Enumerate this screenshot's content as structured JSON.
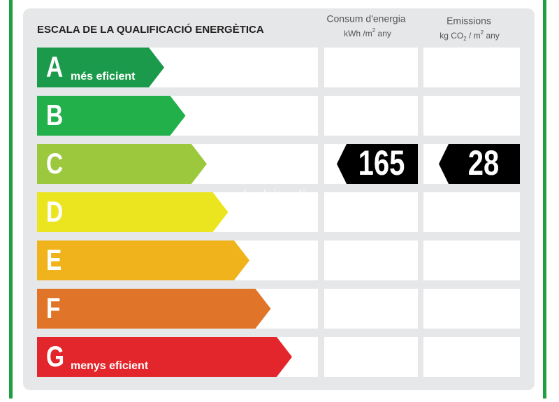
{
  "title": "ESCALA DE LA QUALIFICACIÓ ENERGÈTICA",
  "columns": [
    {
      "title": "Consum d'energia",
      "unit": [
        "kWh /m",
        "2",
        " any"
      ]
    },
    {
      "title": "Emissions",
      "unit": [
        "kg CO",
        "2",
        " / m",
        "2",
        " any"
      ]
    }
  ],
  "rows": [
    {
      "letter": "A",
      "label": "més eficient",
      "color": "#1a9a4a"
    },
    {
      "letter": "B",
      "color": "#22b04b"
    },
    {
      "letter": "C",
      "color": "#9bc83c"
    },
    {
      "letter": "D",
      "color": "#ebe51f"
    },
    {
      "letter": "E",
      "color": "#f0b31b"
    },
    {
      "letter": "F",
      "color": "#e07428"
    },
    {
      "letter": "G",
      "label": "menys eficient",
      "color": "#e3262b"
    }
  ],
  "rating": {
    "row": 2,
    "consumption": 165,
    "emissions": 28
  },
  "watermark": "habitadia"
}
